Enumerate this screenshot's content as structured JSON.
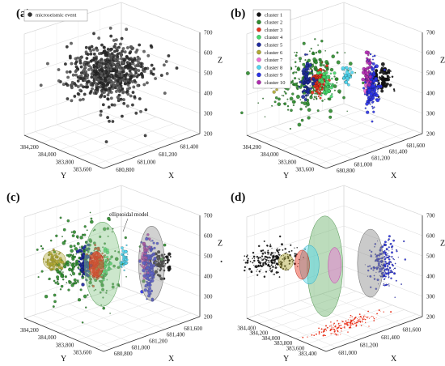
{
  "chart_data": [
    {
      "type": "scatter",
      "panel_label": "(a)",
      "xlabel": "X",
      "ylabel": "Y",
      "zlabel": "Z",
      "x_ticks": [
        "680,800",
        "681,000",
        "681,200",
        "681,400"
      ],
      "y_ticks": [
        "383,600",
        "383,800",
        "384,000",
        "384,200"
      ],
      "z_ticks": [
        "200",
        "300",
        "400",
        "500",
        "600",
        "700"
      ],
      "xlim": [
        680700,
        681550
      ],
      "ylim": [
        383500,
        384300
      ],
      "zlim": [
        200,
        700
      ],
      "legend": [
        "microseismic event"
      ],
      "legend_position": "top-left",
      "colors": [
        "#333333"
      ],
      "grid": true,
      "clusters": [
        {
          "name": "microseismic event",
          "color": "#333333",
          "center": [
            681150,
            383950,
            490
          ],
          "spread": [
            140,
            120,
            55
          ],
          "count": 650
        }
      ],
      "outliers": [
        [
          680900,
          383700,
          250
        ],
        [
          681300,
          384100,
          270
        ],
        [
          681250,
          383800,
          300
        ],
        [
          680950,
          384150,
          360
        ],
        [
          681200,
          383650,
          230
        ],
        [
          681100,
          383900,
          270
        ],
        [
          681000,
          383750,
          320
        ],
        [
          681350,
          383950,
          290
        ]
      ]
    },
    {
      "type": "scatter",
      "panel_label": "(b)",
      "xlabel": "X",
      "ylabel": "Y",
      "zlabel": "Z",
      "x_ticks": [
        "680,800",
        "681,000",
        "681,200",
        "681,400",
        "681,600"
      ],
      "y_ticks": [
        "383,600",
        "383,800",
        "384,000",
        "384,200"
      ],
      "z_ticks": [
        "200",
        "300",
        "400",
        "500",
        "600",
        "700"
      ],
      "xlim": [
        680700,
        681650
      ],
      "ylim": [
        383500,
        384300
      ],
      "zlim": [
        200,
        700
      ],
      "legend": [
        "cluster 1",
        "cluster 2",
        "cluster 3",
        "cluster 4",
        "cluster 5",
        "cluster 6",
        "cluster 7",
        "cluster 8",
        "cluster 9",
        "cluster 10"
      ],
      "legend_position": "top-left",
      "colors": [
        "#111111",
        "#2e8b2e",
        "#e8331c",
        "#44d86a",
        "#1e2a9e",
        "#b0a832",
        "#f06cd8",
        "#4fd6f0",
        "#2a32e6",
        "#b02ab0"
      ],
      "grid": true,
      "clusters": [
        {
          "name": "cluster 1",
          "color": "#111111",
          "center": [
            681400,
            383650,
            480
          ],
          "spread": [
            40,
            30,
            30
          ],
          "count": 90
        },
        {
          "name": "cluster 2",
          "color": "#2e8b2e",
          "center": [
            681000,
            384000,
            470
          ],
          "spread": [
            160,
            120,
            80
          ],
          "count": 260
        },
        {
          "name": "cluster 3",
          "color": "#e8331c",
          "center": [
            681020,
            383900,
            490
          ],
          "spread": [
            30,
            25,
            35
          ],
          "count": 110
        },
        {
          "name": "cluster 4",
          "color": "#44d86a",
          "center": [
            681080,
            383880,
            480
          ],
          "spread": [
            25,
            25,
            30
          ],
          "count": 60
        },
        {
          "name": "cluster 5",
          "color": "#1e2a9e",
          "center": [
            680950,
            383950,
            500
          ],
          "spread": [
            25,
            20,
            40
          ],
          "count": 90
        },
        {
          "name": "cluster 6",
          "color": "#b0a832",
          "center": [
            680850,
            384150,
            490
          ],
          "spread": [
            30,
            25,
            25
          ],
          "count": 60
        },
        {
          "name": "cluster 7",
          "color": "#f06cd8",
          "center": [
            681300,
            383700,
            490
          ],
          "spread": [
            15,
            15,
            40
          ],
          "count": 40
        },
        {
          "name": "cluster 8",
          "color": "#4fd6f0",
          "center": [
            681200,
            383800,
            500
          ],
          "spread": [
            15,
            15,
            25
          ],
          "count": 30
        },
        {
          "name": "cluster 9",
          "color": "#2a32e6",
          "center": [
            681330,
            383680,
            460
          ],
          "spread": [
            25,
            20,
            60
          ],
          "count": 150
        },
        {
          "name": "cluster 10",
          "color": "#b02ab0",
          "center": [
            681330,
            383720,
            520
          ],
          "spread": [
            12,
            12,
            40
          ],
          "count": 40
        }
      ]
    },
    {
      "type": "scatter",
      "panel_label": "(c)",
      "xlabel": "X",
      "ylabel": "Y",
      "zlabel": "Z",
      "x_ticks": [
        "680,800",
        "681,000",
        "681,200",
        "681,400",
        "681,600"
      ],
      "y_ticks": [
        "383,600",
        "383,800",
        "384,000",
        "384,200"
      ],
      "z_ticks": [
        "200",
        "300",
        "400",
        "500",
        "600",
        "700"
      ],
      "xlim": [
        680700,
        681650
      ],
      "ylim": [
        383500,
        384300
      ],
      "zlim": [
        200,
        700
      ],
      "annotation": "ellipsoidal model",
      "colors": [
        "#111111",
        "#2e8b2e",
        "#e8331c",
        "#44d86a",
        "#1e2a9e",
        "#b0a832",
        "#f06cd8",
        "#4fd6f0",
        "#2a32e6",
        "#b02ab0"
      ],
      "grid": true
    },
    {
      "type": "scatter",
      "panel_label": "(d)",
      "xlabel": "X",
      "ylabel": "Y",
      "zlabel": "Z",
      "x_ticks": [
        "681,000",
        "681,200",
        "681,400",
        "681,600"
      ],
      "y_ticks": [
        "383,400",
        "383,600",
        "383,800",
        "384,000",
        "384,200",
        "384,400"
      ],
      "z_ticks": [
        "200",
        "300",
        "400",
        "500",
        "600",
        "700"
      ],
      "xlim": [
        680900,
        681650
      ],
      "ylim": [
        383300,
        384500
      ],
      "zlim": [
        200,
        700
      ],
      "colors": [
        "#111111",
        "#2e8b2e",
        "#e8331c",
        "#2a32e6"
      ],
      "grid": true
    }
  ]
}
